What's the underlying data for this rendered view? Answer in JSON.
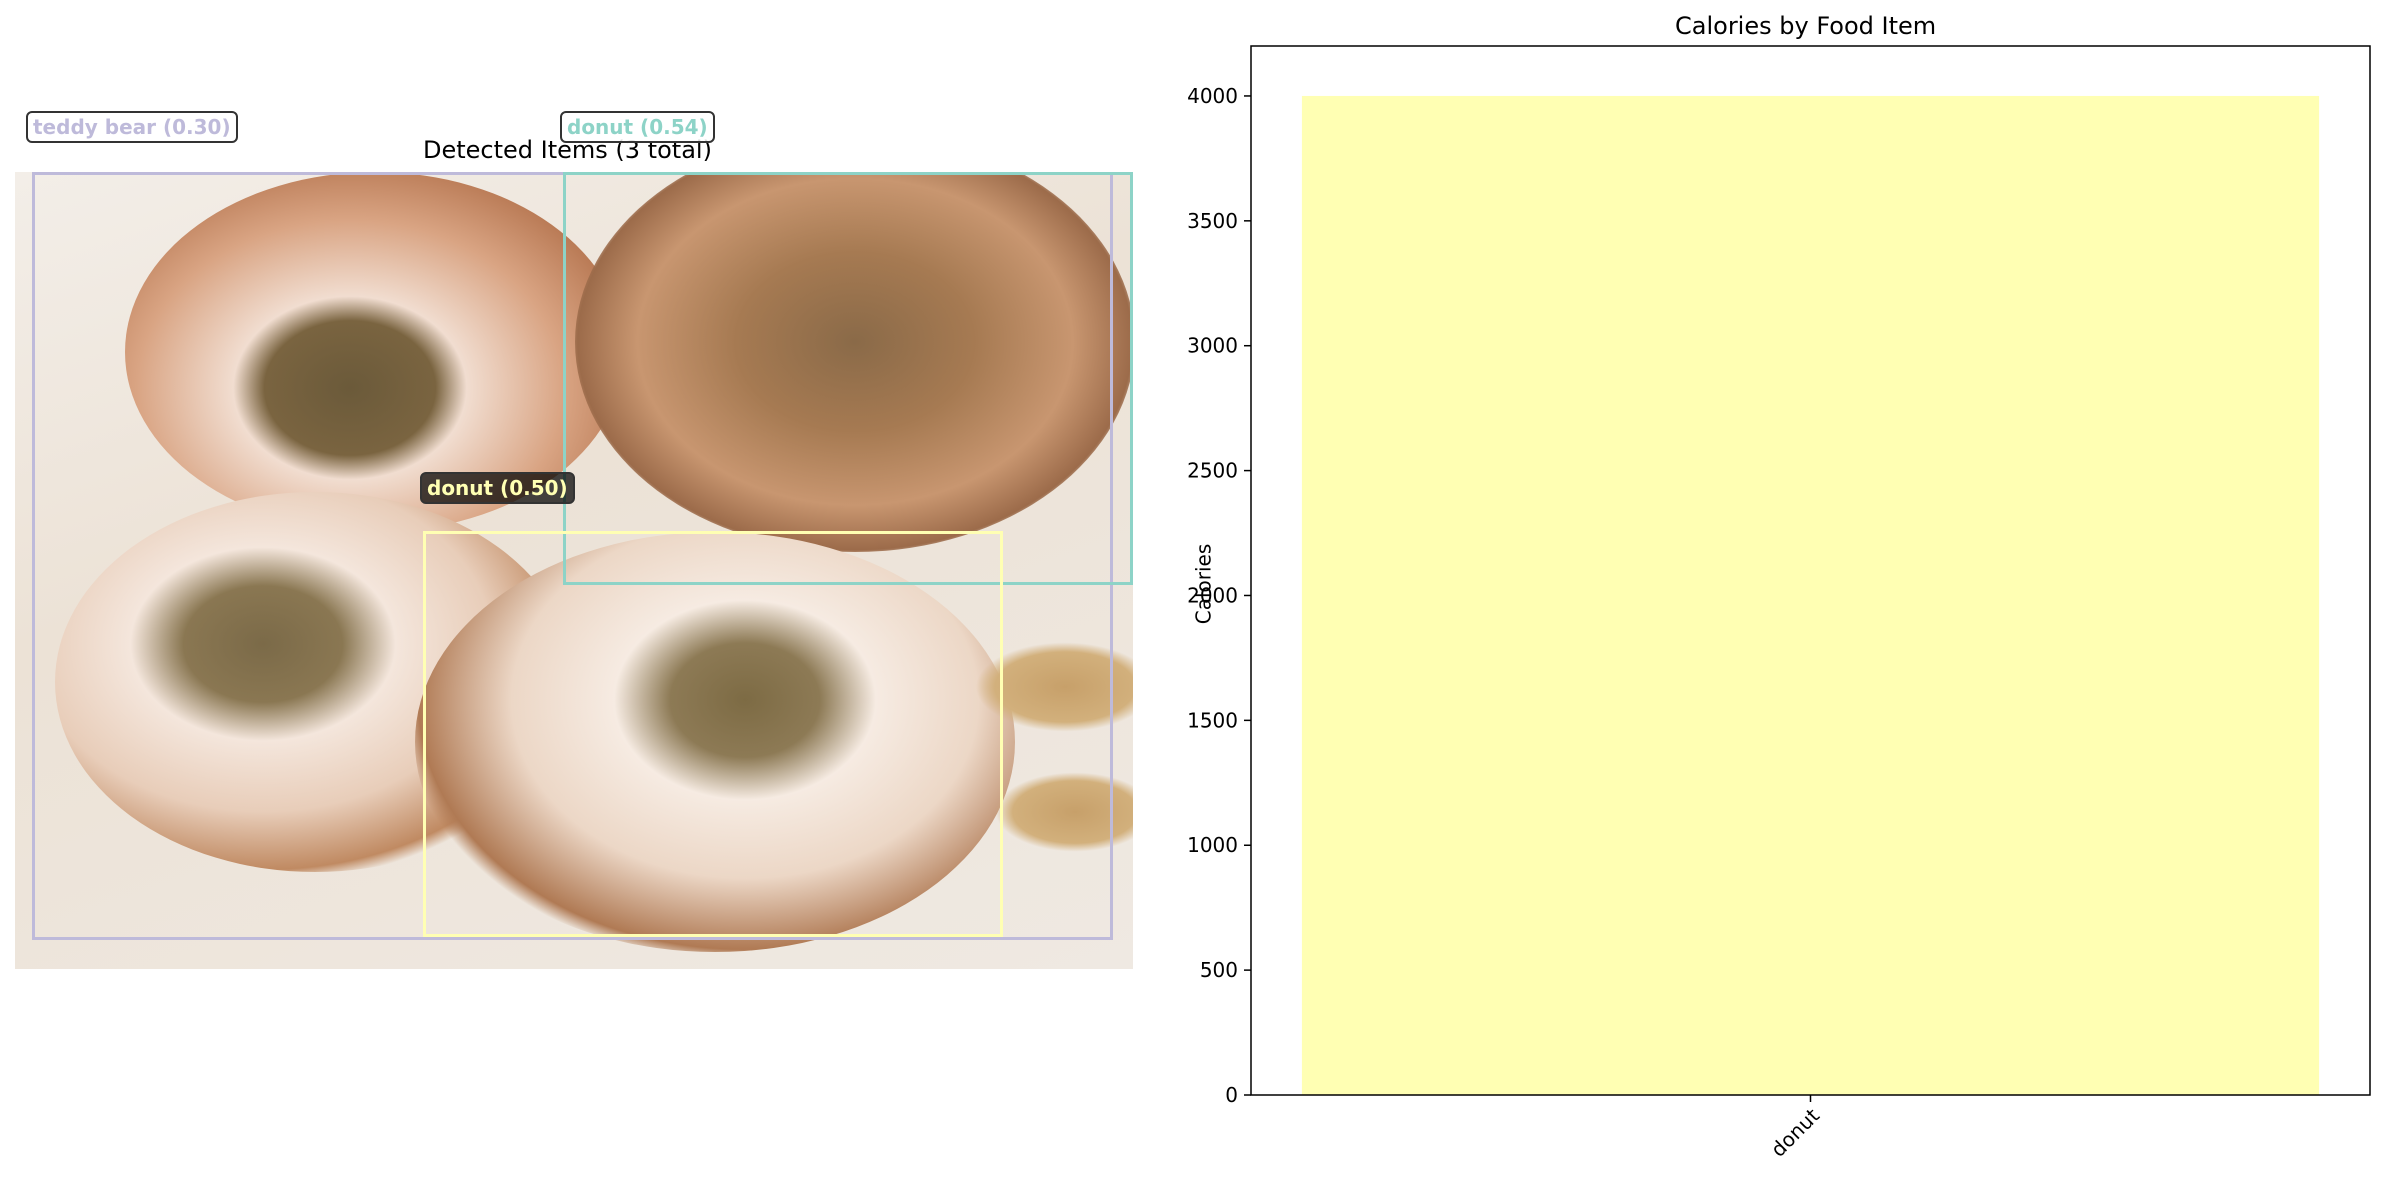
{
  "left_panel": {
    "title": "Detected Items (3 total)",
    "detections": [
      {
        "label": "teddy bear (0.30)",
        "color": "#bebada"
      },
      {
        "label": "donut (0.54)",
        "color": "#8dd3c7"
      },
      {
        "label": "donut (0.50)",
        "color": "#ffffb3"
      }
    ]
  },
  "chart_data": {
    "type": "bar",
    "title": "Calories by Food Item",
    "xlabel": "",
    "ylabel": "Calories",
    "categories": [
      "donut"
    ],
    "values": [
      4000
    ],
    "bar_color": "#ffffb3",
    "ylim": [
      0,
      4200
    ],
    "yticks": [
      0,
      500,
      1000,
      1500,
      2000,
      2500,
      3000,
      3500,
      4000
    ],
    "grid": false
  }
}
